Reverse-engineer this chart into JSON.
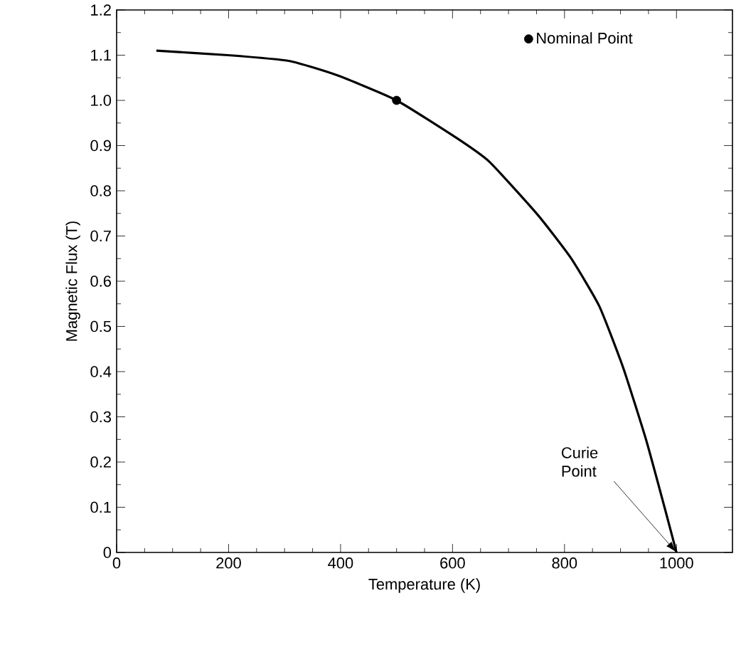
{
  "chart_data": {
    "type": "line",
    "xlabel": "Temperature (K)",
    "ylabel": "Magnetic Flux (T)",
    "xlim": [
      0,
      1100
    ],
    "ylim": [
      0,
      1.2
    ],
    "xticks": [
      0,
      200,
      400,
      600,
      800,
      1000
    ],
    "yticks": [
      0,
      0.1,
      0.2,
      0.3,
      0.4,
      0.5,
      0.6,
      0.7,
      0.8,
      0.9,
      {
        "value": 1.0,
        "label": "1.0"
      },
      1.1,
      1.2
    ],
    "series": [
      {
        "color": "#000000",
        "x": [
          71,
          199,
          309,
          395,
          500,
          607,
          666,
          752,
          811,
          862,
          905,
          946,
          981,
          1000
        ],
        "values": [
          1.11,
          1.1,
          1.087,
          1.055,
          1.0,
          0.917,
          0.864,
          0.747,
          0.652,
          0.545,
          0.408,
          0.248,
          0.089,
          0
        ]
      },
      {
        "type": "scatter",
        "name": "Nominal Point",
        "color": "#000000",
        "marker": "circle",
        "x": [
          500
        ],
        "values": [
          1.0
        ]
      }
    ],
    "legend": "top right",
    "grid": false,
    "annotations": [
      {
        "text": "Curie Point",
        "x": 1000,
        "y": 0
      }
    ]
  }
}
